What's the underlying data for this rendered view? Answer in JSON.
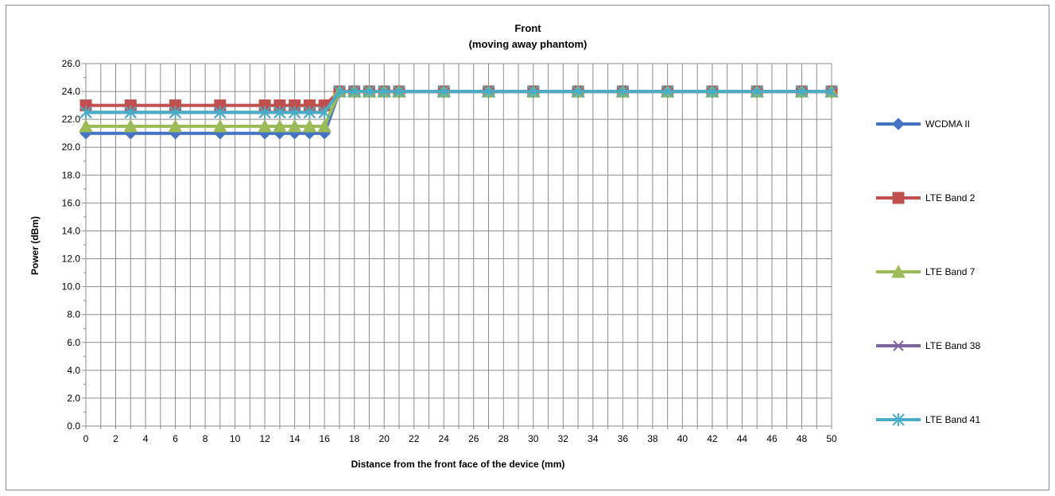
{
  "chart_data": {
    "type": "line",
    "title_lines": [
      "Front",
      "(moving away phantom)"
    ],
    "xlabel": "Distance from the front face of the device (mm)",
    "ylabel": "Power (dBm)",
    "ylim": [
      0,
      26
    ],
    "xlim": [
      0,
      50
    ],
    "y_ticks": [
      "0.0",
      "2.0",
      "4.0",
      "6.0",
      "8.0",
      "10.0",
      "12.0",
      "14.0",
      "16.0",
      "18.0",
      "20.0",
      "22.0",
      "24.0",
      "26.0"
    ],
    "x_ticks": [
      "0",
      "2",
      "4",
      "6",
      "8",
      "10",
      "12",
      "14",
      "16",
      "18",
      "20",
      "22",
      "24",
      "26",
      "28",
      "30",
      "32",
      "34",
      "36",
      "38",
      "40",
      "42",
      "44",
      "46",
      "48",
      "50"
    ],
    "grid": true,
    "legend_position": "right",
    "x": [
      0,
      3,
      6,
      9,
      12,
      13,
      14,
      15,
      16,
      17,
      18,
      19,
      20,
      21,
      24,
      27,
      30,
      33,
      36,
      39,
      42,
      45,
      48,
      50
    ],
    "series": [
      {
        "name": "WCDMA II",
        "color": "#4472c4",
        "marker": "diamond",
        "values": [
          21,
          21,
          21,
          21,
          21,
          21,
          21,
          21,
          21,
          24,
          24,
          24,
          24,
          24,
          24,
          24,
          24,
          24,
          24,
          24,
          24,
          24,
          24,
          24
        ]
      },
      {
        "name": "LTE Band 2",
        "color": "#c0504d",
        "marker": "square",
        "values": [
          23,
          23,
          23,
          23,
          23,
          23,
          23,
          23,
          23,
          24,
          24,
          24,
          24,
          24,
          24,
          24,
          24,
          24,
          24,
          24,
          24,
          24,
          24,
          24
        ]
      },
      {
        "name": "LTE Band 7",
        "color": "#9bbb59",
        "marker": "triangle",
        "values": [
          21.5,
          21.5,
          21.5,
          21.5,
          21.5,
          21.5,
          21.5,
          21.5,
          21.5,
          24,
          24,
          24,
          24,
          24,
          24,
          24,
          24,
          24,
          24,
          24,
          24,
          24,
          24,
          24
        ]
      },
      {
        "name": "LTE Band 38",
        "color": "#8064a2",
        "marker": "x",
        "values": [
          22.5,
          22.5,
          22.5,
          22.5,
          22.5,
          22.5,
          22.5,
          22.5,
          22.5,
          24,
          24,
          24,
          24,
          24,
          24,
          24,
          24,
          24,
          24,
          24,
          24,
          24,
          24,
          24
        ]
      },
      {
        "name": "LTE Band 41",
        "color": "#4bacc6",
        "marker": "star",
        "values": [
          22.5,
          22.5,
          22.5,
          22.5,
          22.5,
          22.5,
          22.5,
          22.5,
          22.5,
          24,
          24,
          24,
          24,
          24,
          24,
          24,
          24,
          24,
          24,
          24,
          24,
          24,
          24,
          24
        ]
      }
    ]
  }
}
